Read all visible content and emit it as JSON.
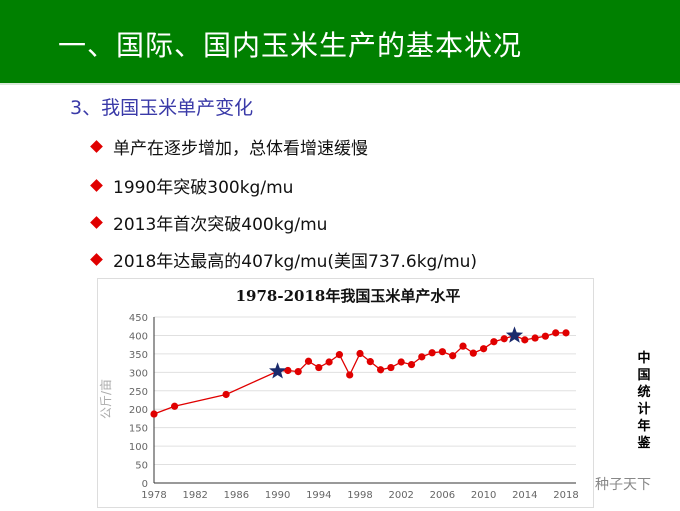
{
  "header": {
    "title": "一、国际、国内玉米生产的基本状况"
  },
  "subtitle": "3、我国玉米单产变化",
  "bullets": [
    "单产在逐步增加，总体看增速缓慢",
    "1990年突破300kg/mu",
    "2013年首次突破400kg/mu",
    "2018年达最高的407kg/mu(美国737.6kg/mu)"
  ],
  "source": "中国统计年鉴",
  "watermark": "种子天下",
  "colors": {
    "header": "#008000",
    "subtitle": "#3a3aa8",
    "bullet": "#e00000",
    "line": "#e00000",
    "star": "#1a2a6c"
  },
  "chart_data": {
    "type": "line",
    "title": "1978-2018年我国玉米单产水平",
    "xlabel": "",
    "ylabel": "公斤/亩",
    "ylim": [
      0,
      450
    ],
    "yticks": [
      0,
      50,
      100,
      150,
      200,
      250,
      300,
      350,
      400,
      450
    ],
    "xlim": [
      1978,
      2018
    ],
    "xticks": [
      1978,
      1982,
      1986,
      1990,
      1994,
      1998,
      2002,
      2006,
      2010,
      2014,
      2018
    ],
    "grid": true,
    "series": [
      {
        "name": "单产",
        "x": [
          1978,
          1980,
          1985,
          1990,
          1991,
          1992,
          1993,
          1994,
          1995,
          1996,
          1997,
          1998,
          1999,
          2000,
          2001,
          2002,
          2003,
          2004,
          2005,
          2006,
          2007,
          2008,
          2009,
          2010,
          2011,
          2012,
          2013,
          2014,
          2015,
          2016,
          2017,
          2018
        ],
        "values": [
          187,
          208,
          240,
          303,
          305,
          302,
          330,
          313,
          328,
          348,
          293,
          351,
          329,
          307,
          313,
          328,
          321,
          342,
          353,
          356,
          345,
          371,
          352,
          364,
          383,
          391,
          400,
          388,
          393,
          398,
          407,
          407
        ]
      }
    ],
    "highlights": [
      {
        "x": 1990,
        "value": 303
      },
      {
        "x": 2013,
        "value": 400
      }
    ]
  }
}
